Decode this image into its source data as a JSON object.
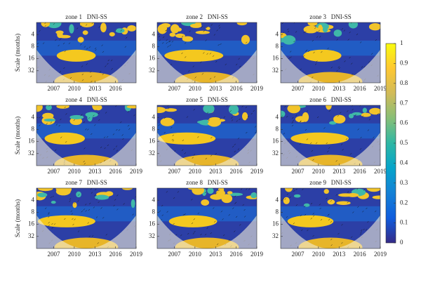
{
  "chart_data": [
    {
      "type": "wavelet",
      "title": "zone 1   DNI-SS",
      "ylabel": "Scale (months)",
      "xlim": [
        2004.5,
        2019
      ],
      "xticks": [
        2007,
        2010,
        2013,
        2016
      ],
      "ylim": [
        2,
        64
      ],
      "yticks": [
        4,
        8,
        16,
        32
      ],
      "ylog": true
    },
    {
      "type": "wavelet",
      "title": "zone 2   DNI-SS",
      "xlim": [
        2004.5,
        2019
      ],
      "xticks": [
        2007,
        2010,
        2013,
        2016,
        2019
      ],
      "ylim": [
        2,
        64
      ],
      "yticks": [
        4,
        8,
        16,
        32
      ],
      "ylog": true
    },
    {
      "type": "wavelet",
      "title": "zone 3   DNI-SS",
      "xlim": [
        2004.5,
        2019
      ],
      "xticks": [
        2007,
        2010,
        2013,
        2016,
        2019
      ],
      "ylim": [
        2,
        64
      ],
      "yticks": [
        4,
        8,
        16,
        32
      ],
      "ylog": true
    },
    {
      "type": "wavelet",
      "title": "zone 4   DNI-SS",
      "ylabel": "Scale (months)",
      "xlim": [
        2004.5,
        2019
      ],
      "xticks": [
        2007,
        2010,
        2013,
        2016,
        2019
      ],
      "ylim": [
        2,
        64
      ],
      "yticks": [
        4,
        8,
        16,
        32
      ],
      "ylog": true
    },
    {
      "type": "wavelet",
      "title": "zone 5   DNI-SS",
      "xlim": [
        2004.5,
        2019
      ],
      "xticks": [
        2007,
        2010,
        2013,
        2016,
        2019
      ],
      "ylim": [
        2,
        64
      ],
      "yticks": [
        4,
        8,
        16,
        32
      ],
      "ylog": true
    },
    {
      "type": "wavelet",
      "title": "zone 6   DNI-SS",
      "xlim": [
        2004.5,
        2019
      ],
      "xticks": [
        2007,
        2010,
        2013,
        2016,
        2019
      ],
      "ylim": [
        2,
        64
      ],
      "yticks": [
        4,
        8,
        16,
        32
      ],
      "ylog": true
    },
    {
      "type": "wavelet",
      "title": "zone 7   DNI-SS",
      "ylabel": "Scale (months)",
      "xlim": [
        2004.5,
        2019
      ],
      "xticks": [
        2007,
        2010,
        2013,
        2016,
        2019
      ],
      "ylim": [
        2,
        64
      ],
      "yticks": [
        4,
        8,
        16,
        32
      ],
      "ylog": true
    },
    {
      "type": "wavelet",
      "title": "zone 8   DNI-SS",
      "xlim": [
        2004.5,
        2019
      ],
      "xticks": [
        2007,
        2010,
        2013,
        2016,
        2019
      ],
      "ylim": [
        2,
        64
      ],
      "yticks": [
        4,
        8,
        16,
        32
      ],
      "ylog": true
    },
    {
      "type": "wavelet",
      "title": "zone 9   DNI-SS",
      "xlim": [
        2004.5,
        2019
      ],
      "xticks": [
        2007,
        2010,
        2013,
        2016,
        2019
      ],
      "ylim": [
        2,
        64
      ],
      "yticks": [
        4,
        8,
        16,
        32
      ],
      "ylog": true
    },
    {
      "type": "colorbar",
      "ylim": [
        0,
        1
      ],
      "yticks": [
        0,
        0.1,
        0.2,
        0.3,
        0.4,
        0.5,
        0.6,
        0.7,
        0.8,
        0.9,
        1
      ],
      "colors": [
        "#352a87",
        "#0f5cdd",
        "#1481d6",
        "#06a4ca",
        "#2eb7a4",
        "#87bf77",
        "#d1bb59",
        "#fec832",
        "#f9fb0e"
      ]
    }
  ]
}
